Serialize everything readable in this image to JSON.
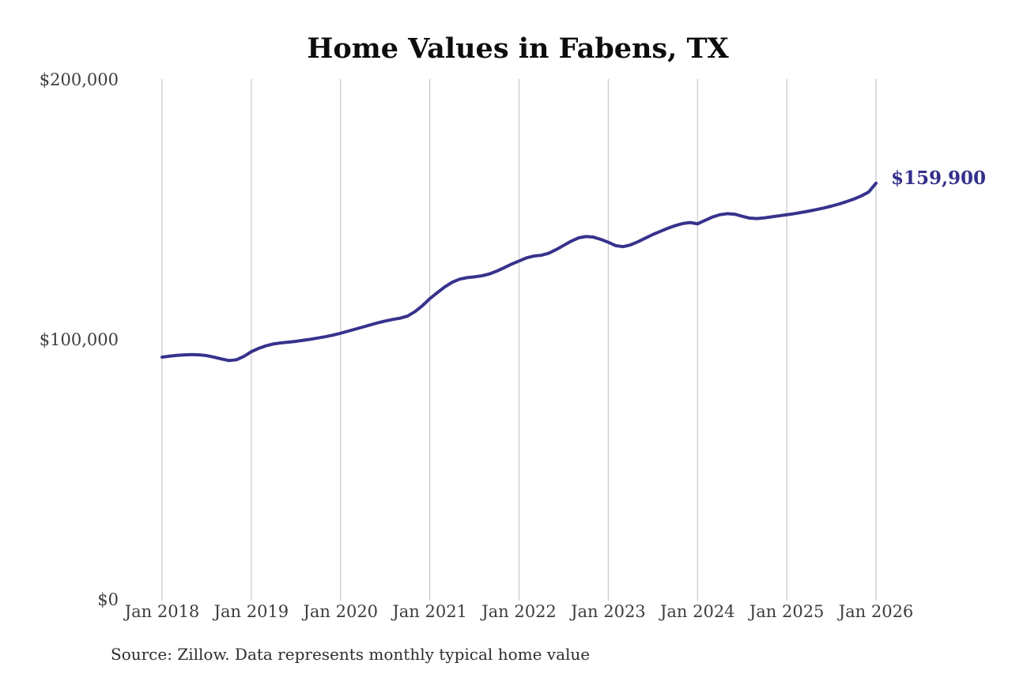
{
  "chart_data": {
    "type": "line",
    "title": "Home Values in Fabens, TX",
    "source_note": "Source: Zillow. Data represents monthly typical home value",
    "end_label": "$159,900",
    "colors": {
      "line": "#37328c",
      "end_label": "#332f8a",
      "grid": "#c9c9c9",
      "tick_text": "#3d3d3d",
      "title_text": "#0d0d0d",
      "source_text": "#2e2e2e",
      "background": "#ffffff"
    },
    "ylim": [
      0,
      200000
    ],
    "y_ticks": [
      {
        "value": 0,
        "label": "$0"
      },
      {
        "value": 100000,
        "label": "$100,000"
      },
      {
        "value": 200000,
        "label": "$200,000"
      }
    ],
    "x_ticks": [
      "Jan 2018",
      "Jan 2019",
      "Jan 2020",
      "Jan 2021",
      "Jan 2022",
      "Jan 2023",
      "Jan 2024",
      "Jan 2025",
      "Jan 2026"
    ],
    "grid": "vertical-only",
    "legend": "none",
    "series": [
      {
        "name": "Monthly typical home value",
        "start": "Jan 2018",
        "end": "Jan 2026",
        "frequency": "monthly",
        "months_per_x_tick": 12,
        "values": [
          93000,
          93400,
          93700,
          93900,
          94000,
          93900,
          93600,
          93000,
          92300,
          91700,
          92000,
          93300,
          95100,
          96400,
          97400,
          98100,
          98500,
          98800,
          99100,
          99500,
          99900,
          100400,
          100900,
          101500,
          102200,
          103000,
          103800,
          104600,
          105400,
          106200,
          106900,
          107500,
          108000,
          108800,
          110500,
          112800,
          115500,
          117800,
          120000,
          121800,
          123000,
          123600,
          123900,
          124300,
          125000,
          126100,
          127400,
          128800,
          130000,
          131200,
          131900,
          132200,
          133000,
          134400,
          136000,
          137600,
          138900,
          139400,
          139200,
          138300,
          137200,
          135900,
          135500,
          136200,
          137400,
          138800,
          140200,
          141400,
          142600,
          143600,
          144400,
          144800,
          144300,
          145600,
          146900,
          147800,
          148200,
          148000,
          147200,
          146500,
          146300,
          146600,
          147000,
          147400,
          147800,
          148200,
          148700,
          149200,
          149800,
          150400,
          151100,
          151900,
          152800,
          153800,
          155000,
          156500,
          159900
        ]
      }
    ]
  }
}
